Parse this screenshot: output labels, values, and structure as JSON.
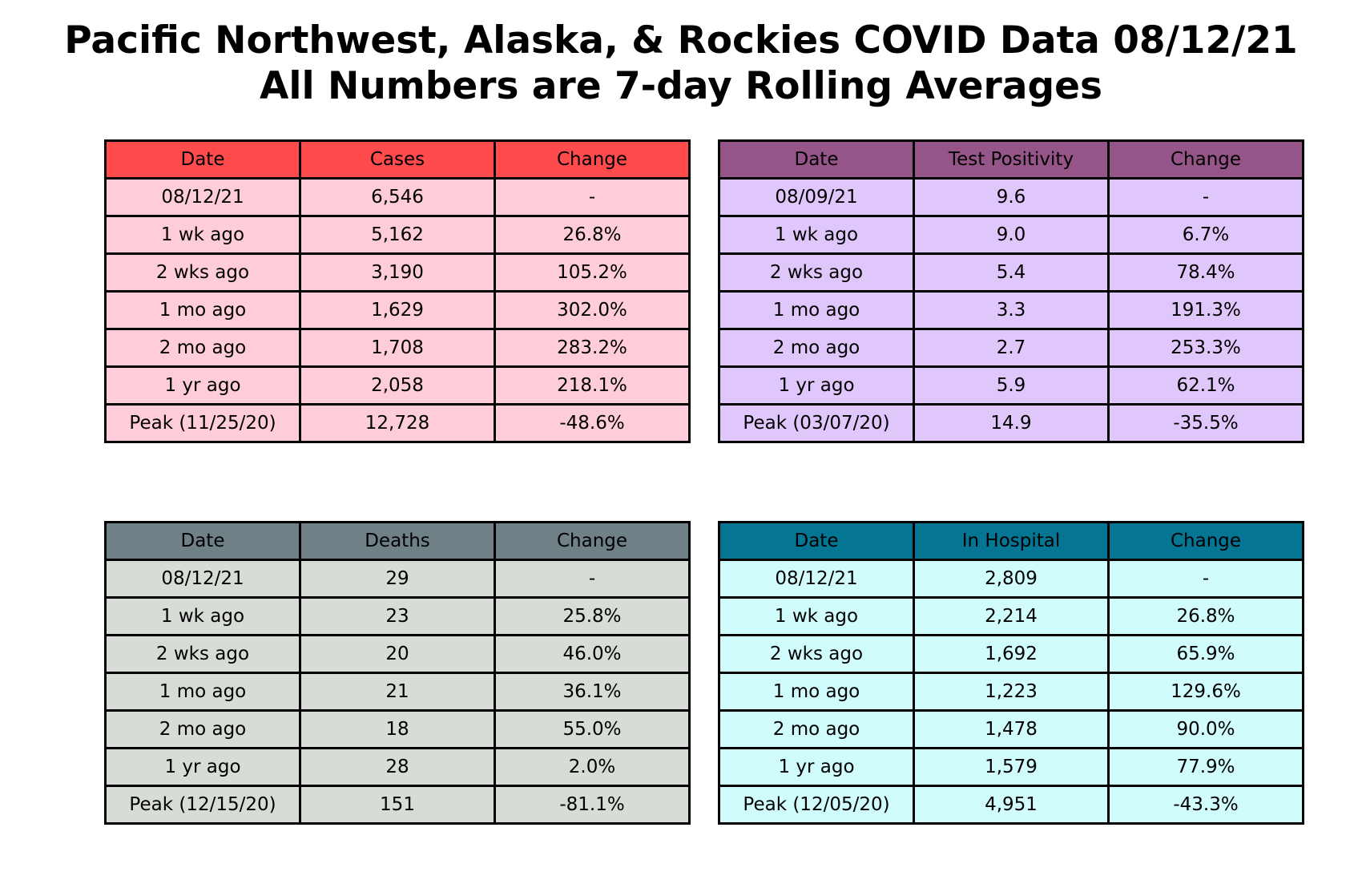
{
  "title": {
    "line1": "Pacific Northwest, Alaska, & Rockies COVID Data 08/12/21",
    "line2": "All Numbers are 7-day Rolling Averages"
  },
  "chart_data": [
    {
      "type": "table",
      "columns": [
        "Date",
        "Cases",
        "Change"
      ],
      "header_color": "#ff4b4b",
      "row_color": "#ffcdd9",
      "rows": [
        [
          "08/12/21",
          "6,546",
          "-"
        ],
        [
          "1 wk ago",
          "5,162",
          "26.8%"
        ],
        [
          "2 wks ago",
          "3,190",
          "105.2%"
        ],
        [
          "1 mo ago",
          "1,629",
          "302.0%"
        ],
        [
          "2 mo ago",
          "1,708",
          "283.2%"
        ],
        [
          "1 yr ago",
          "2,058",
          "218.1%"
        ],
        [
          "Peak (11/25/20)",
          "12,728",
          "-48.6%"
        ]
      ]
    },
    {
      "type": "table",
      "columns": [
        "Date",
        "Test Positivity",
        "Change"
      ],
      "header_color": "#955589",
      "row_color": "#dfc6fb",
      "rows": [
        [
          "08/09/21",
          "9.6",
          "-"
        ],
        [
          "1 wk ago",
          "9.0",
          "6.7%"
        ],
        [
          "2 wks ago",
          "5.4",
          "78.4%"
        ],
        [
          "1 mo ago",
          "3.3",
          "191.3%"
        ],
        [
          "2 mo ago",
          "2.7",
          "253.3%"
        ],
        [
          "1 yr ago",
          "5.9",
          "62.1%"
        ],
        [
          "Peak (03/07/20)",
          "14.9",
          "-35.5%"
        ]
      ]
    },
    {
      "type": "table",
      "columns": [
        "Date",
        "Deaths",
        "Change"
      ],
      "header_color": "#6f8186",
      "row_color": "#d8dcd6",
      "rows": [
        [
          "08/12/21",
          "29",
          "-"
        ],
        [
          "1 wk ago",
          "23",
          "25.8%"
        ],
        [
          "2 wks ago",
          "20",
          "46.0%"
        ],
        [
          "1 mo ago",
          "21",
          "36.1%"
        ],
        [
          "2 mo ago",
          "18",
          "55.0%"
        ],
        [
          "1 yr ago",
          "28",
          "2.0%"
        ],
        [
          "Peak (12/15/20)",
          "151",
          "-81.1%"
        ]
      ]
    },
    {
      "type": "table",
      "columns": [
        "Date",
        "In Hospital",
        "Change"
      ],
      "header_color": "#057594",
      "row_color": "#d0fcfc",
      "rows": [
        [
          "08/12/21",
          "2,809",
          "-"
        ],
        [
          "1 wk ago",
          "2,214",
          "26.8%"
        ],
        [
          "2 wks ago",
          "1,692",
          "65.9%"
        ],
        [
          "1 mo ago",
          "1,223",
          "129.6%"
        ],
        [
          "2 mo ago",
          "1,478",
          "90.0%"
        ],
        [
          "1 yr ago",
          "1,579",
          "77.9%"
        ],
        [
          "Peak (12/05/20)",
          "4,951",
          "-43.3%"
        ]
      ]
    }
  ]
}
